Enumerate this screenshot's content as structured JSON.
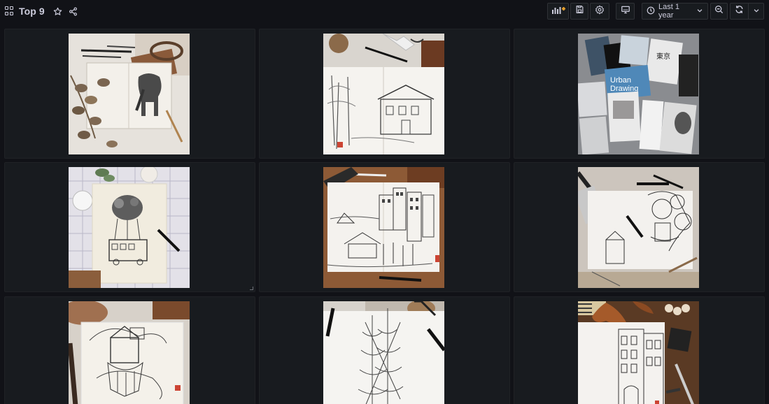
{
  "dashboard": {
    "title": "Top 9",
    "grid_icon": "dashboard-grid-icon",
    "star_icon": "star-icon",
    "share_icon": "share-icon"
  },
  "toolbar": {
    "add_panel_icon": "add-panel-icon",
    "save_icon": "save-icon",
    "settings_icon": "gear-icon",
    "tv_mode_icon": "monitor-icon",
    "time_range_label": "Last 1 year",
    "clock_icon": "clock-icon",
    "zoom_out_icon": "zoom-out-icon",
    "refresh_icon": "refresh-icon",
    "refresh_dropdown_icon": "chevron-down-icon"
  },
  "panels": [
    {
      "subject": "elephant-sketchbook"
    },
    {
      "subject": "house-sketchbook"
    },
    {
      "subject": "books-urban-drawing"
    },
    {
      "subject": "balloon-bus"
    },
    {
      "subject": "city-harbor"
    },
    {
      "subject": "doodle-collage"
    },
    {
      "subject": "floating-house"
    },
    {
      "subject": "sailing-ship"
    },
    {
      "subject": "building-facade"
    }
  ],
  "book_texts": {
    "urban": "Urban",
    "drawing": "Drawing"
  },
  "colors": {
    "background": "#111217",
    "panel": "#181b1f",
    "panel_border": "#202226",
    "text": "#ccccdc",
    "add_panel_accent": "#f0a52b"
  }
}
